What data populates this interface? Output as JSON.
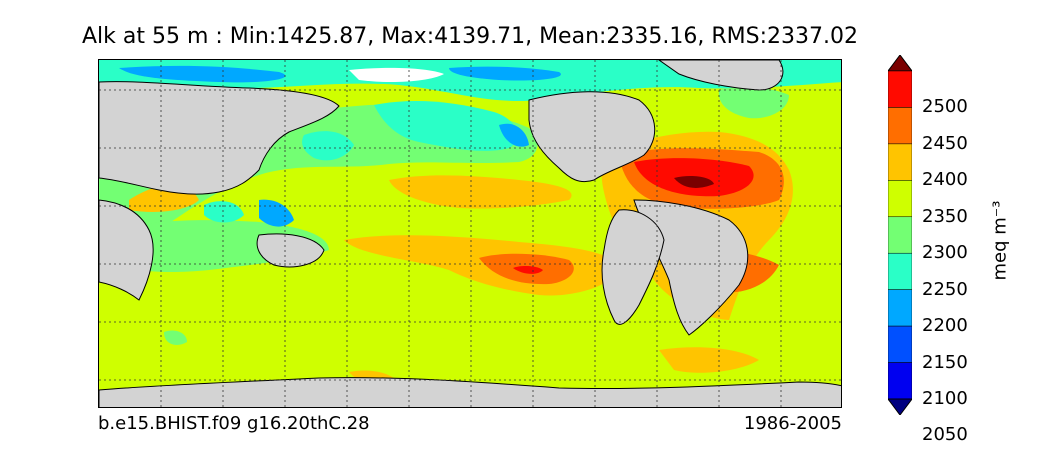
{
  "title": "Alk at 55 m : Min:1425.87, Max:4139.71, Mean:2335.16, RMS:2337.02",
  "footer": {
    "case_name": "b.e15.BHIST.f09 g16.20thC.28",
    "years": "1986-2005"
  },
  "colorbar": {
    "units": "meq m⁻³",
    "ticks": [
      "2500",
      "2450",
      "2400",
      "2350",
      "2300",
      "2250",
      "2200",
      "2150",
      "2100",
      "2050"
    ],
    "colors": [
      "#7a0000",
      "#ff0a00",
      "#ff6e00",
      "#ffc400",
      "#cfff00",
      "#73ff73",
      "#2affc7",
      "#00a8ff",
      "#0050ff",
      "#0000f0",
      "#000080"
    ],
    "land_color": "#d3d3d3"
  }
}
